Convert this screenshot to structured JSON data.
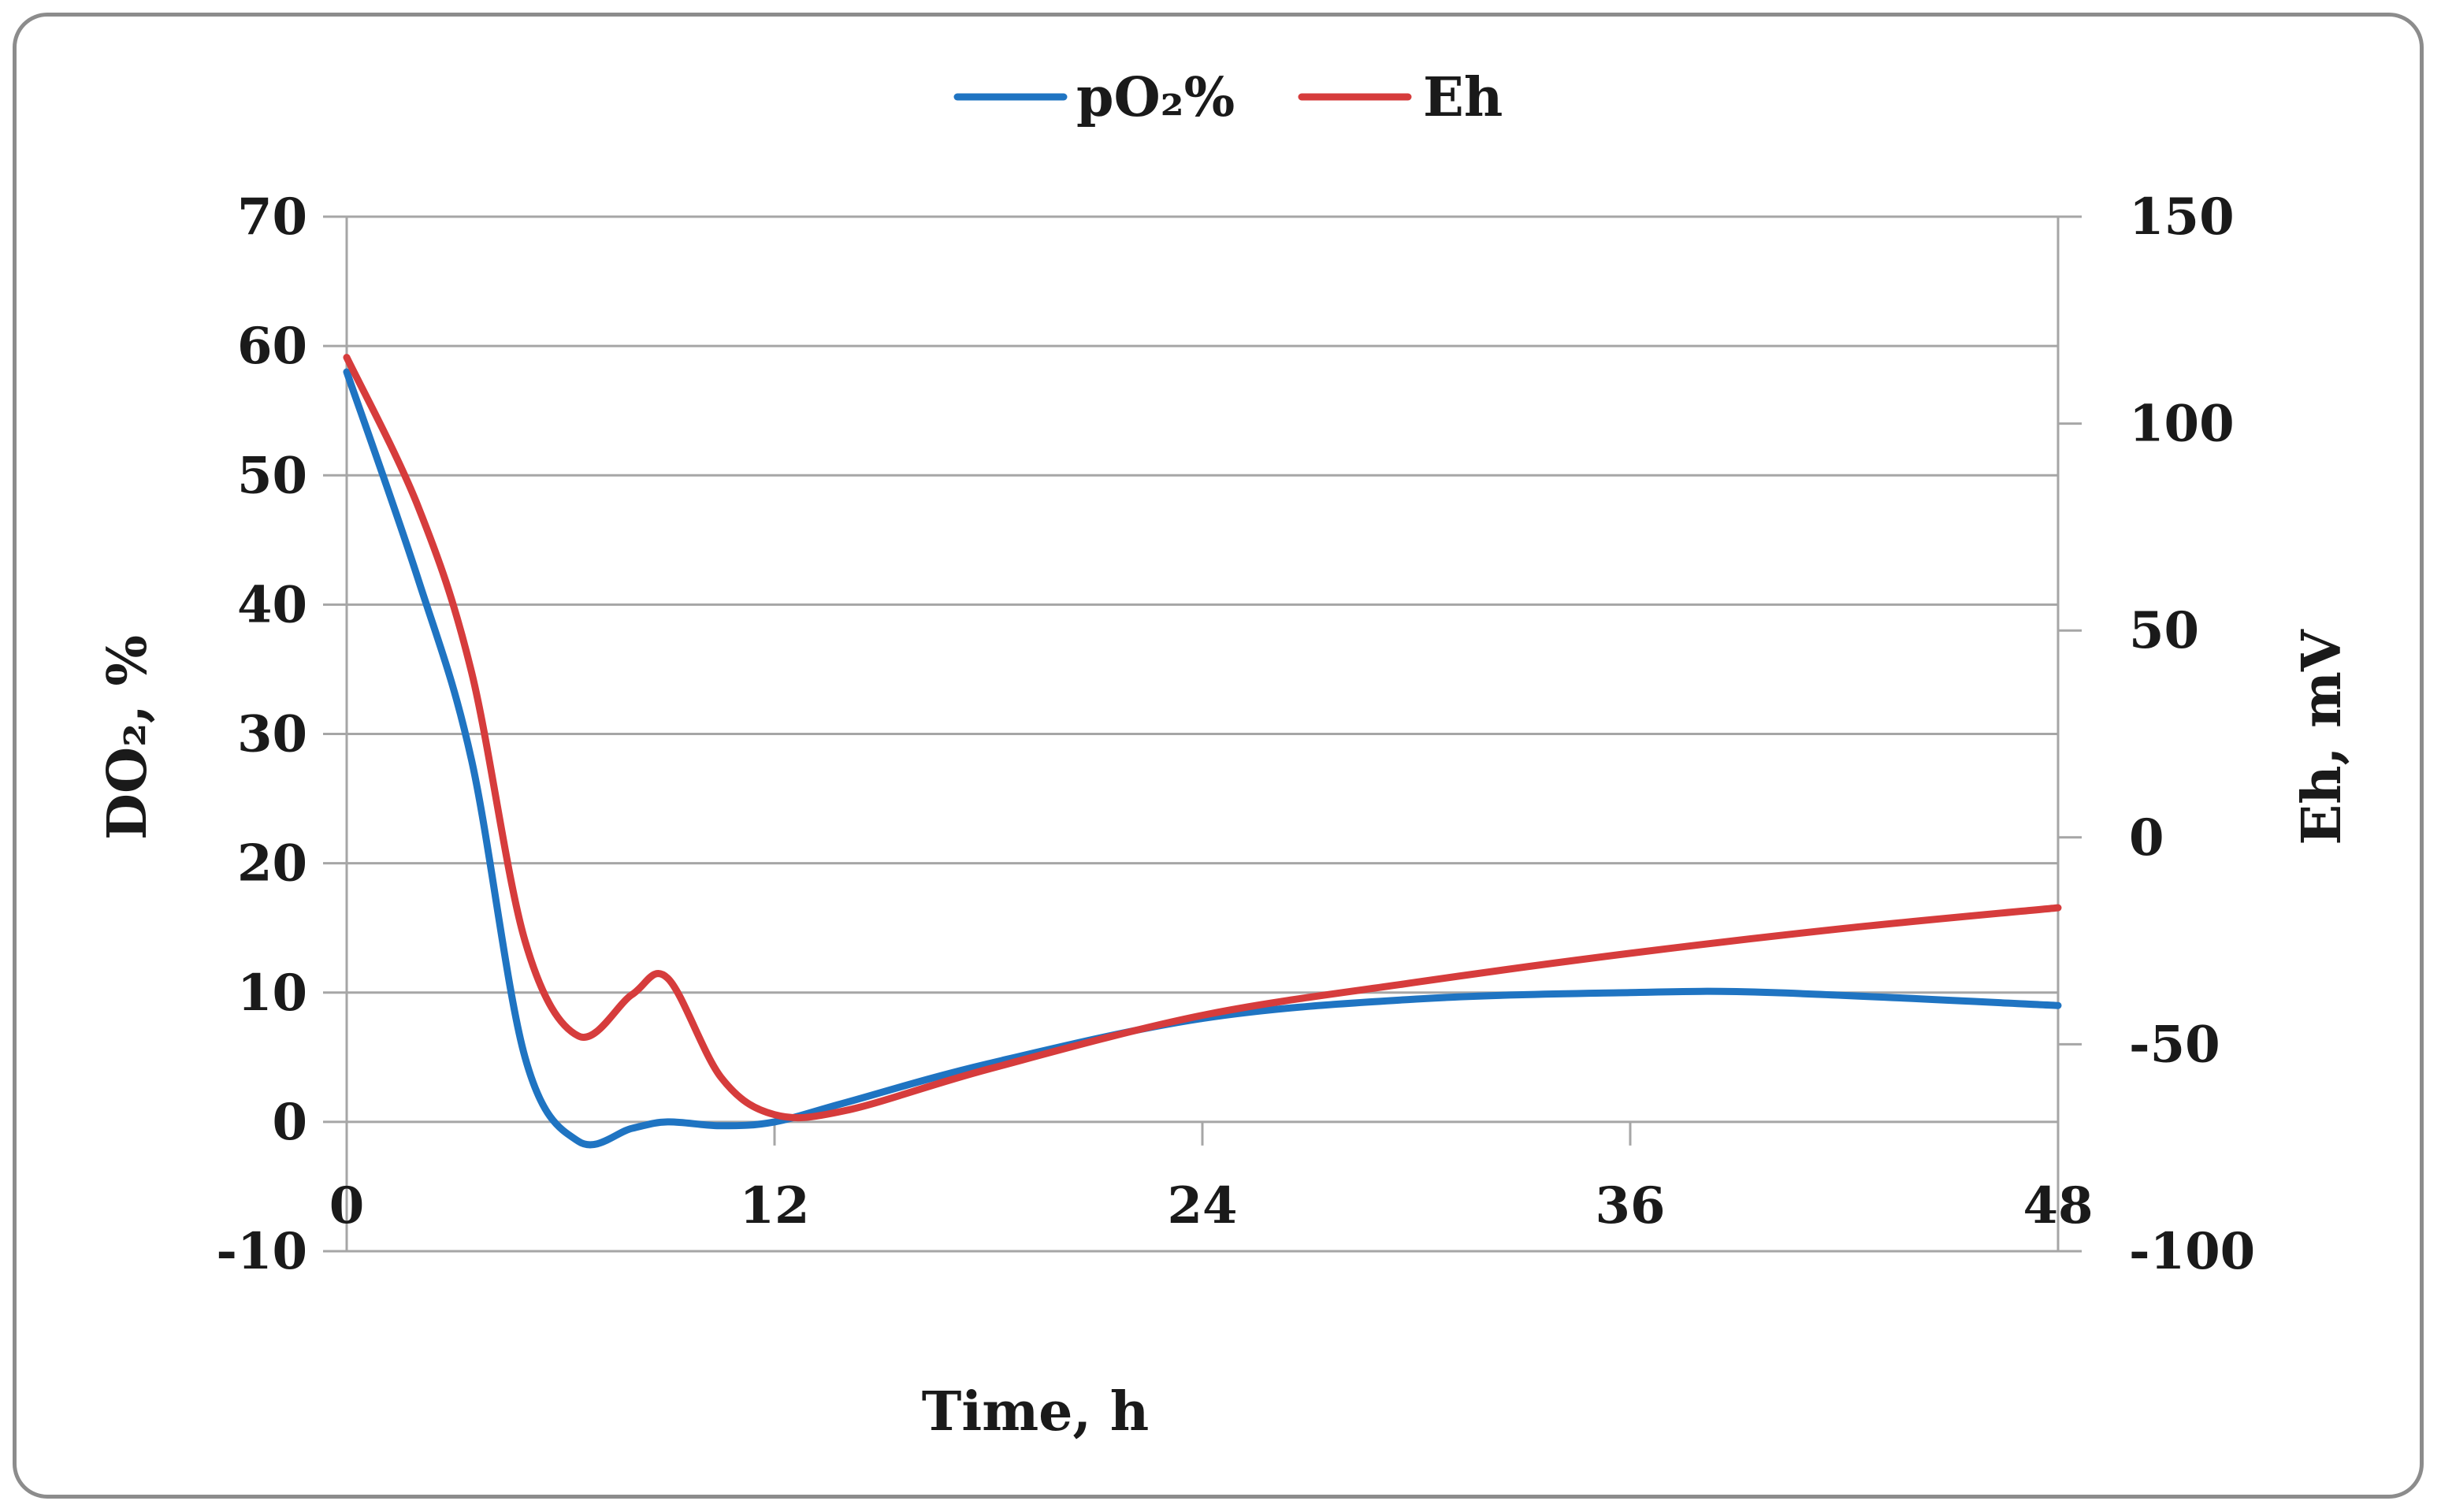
{
  "chart_data": {
    "type": "line",
    "title": "",
    "xlabel": "Time, h",
    "ylabel": "DO₂, %",
    "ylabel_right": "Eh, mV",
    "xlim": [
      0,
      48
    ],
    "ylim": [
      -10,
      70
    ],
    "ylim_right": [
      -100,
      150
    ],
    "x_ticks": [
      0,
      12,
      24,
      36,
      48
    ],
    "y_ticks": [
      -10,
      0,
      10,
      20,
      30,
      40,
      50,
      60,
      70
    ],
    "y_ticks_right": [
      -100,
      -50,
      0,
      50,
      100,
      150
    ],
    "grid": true,
    "legend_position": "top-center",
    "series": [
      {
        "name": "pO₂%",
        "axis": "left",
        "color": "#1f74c2",
        "x": [
          0,
          2,
          3.5,
          5,
          6.5,
          8,
          9,
          10.5,
          12,
          14,
          18,
          24,
          30,
          36,
          40,
          48
        ],
        "y": [
          58,
          42,
          28,
          5,
          -1.5,
          -0.5,
          0,
          -0.3,
          0,
          1.5,
          4.5,
          8,
          9.5,
          10,
          10,
          9
        ]
      },
      {
        "name": "Eh",
        "axis": "right",
        "color": "#d63c3c",
        "x": [
          0,
          2,
          3.5,
          5,
          6.5,
          8,
          9,
          10.5,
          12,
          14,
          18,
          24,
          30,
          36,
          42,
          48
        ],
        "y": [
          116,
          80,
          40,
          -25,
          -48,
          -38,
          -34,
          -58,
          -67,
          -66,
          -56,
          -43,
          -35,
          -28,
          -22,
          -17
        ]
      }
    ]
  }
}
